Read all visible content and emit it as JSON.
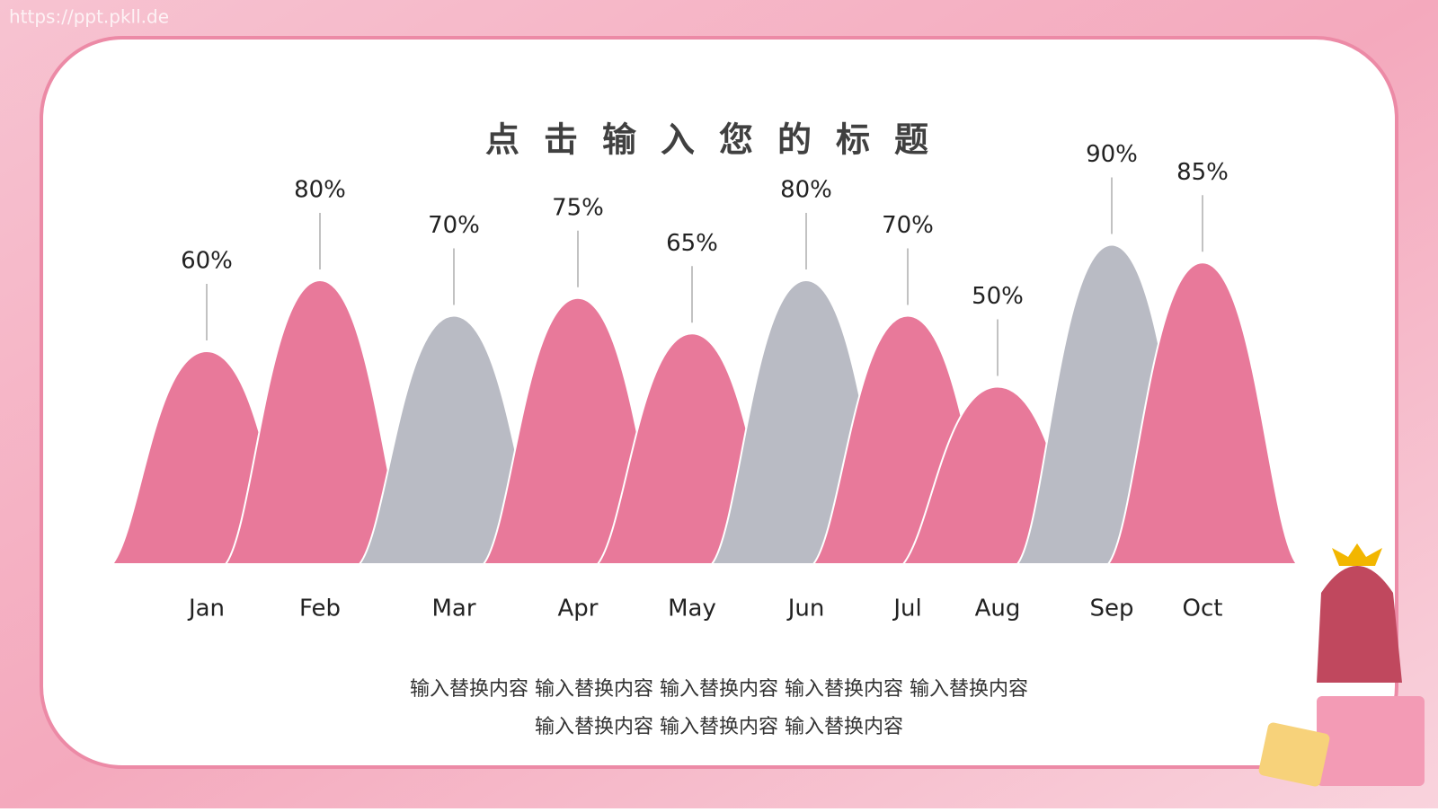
{
  "watermark": "https://ppt.pkll.de",
  "chart_data": {
    "type": "mountain",
    "title": "点击输入您的标题",
    "categories": [
      "Jan",
      "Feb",
      "Mar",
      "Apr",
      "May",
      "Jun",
      "Jul",
      "Aug",
      "Sep",
      "Oct"
    ],
    "values": [
      60,
      80,
      70,
      75,
      65,
      80,
      70,
      50,
      90,
      85
    ],
    "value_labels": [
      "60%",
      "80%",
      "70%",
      "75%",
      "65%",
      "80%",
      "70%",
      "50%",
      "90%",
      "85%"
    ],
    "colors": [
      "#e8799a",
      "#e8799a",
      "#b9bbc4",
      "#e8799a",
      "#e8799a",
      "#b9bbc4",
      "#e8799a",
      "#e8799a",
      "#b9bbc4",
      "#e8799a"
    ]
  },
  "caption": [
    "输入替换内容 输入替换内容 输入替换内容 输入替换内容 输入替换内容",
    "输入替换内容 输入替换内容 输入替换内容"
  ]
}
